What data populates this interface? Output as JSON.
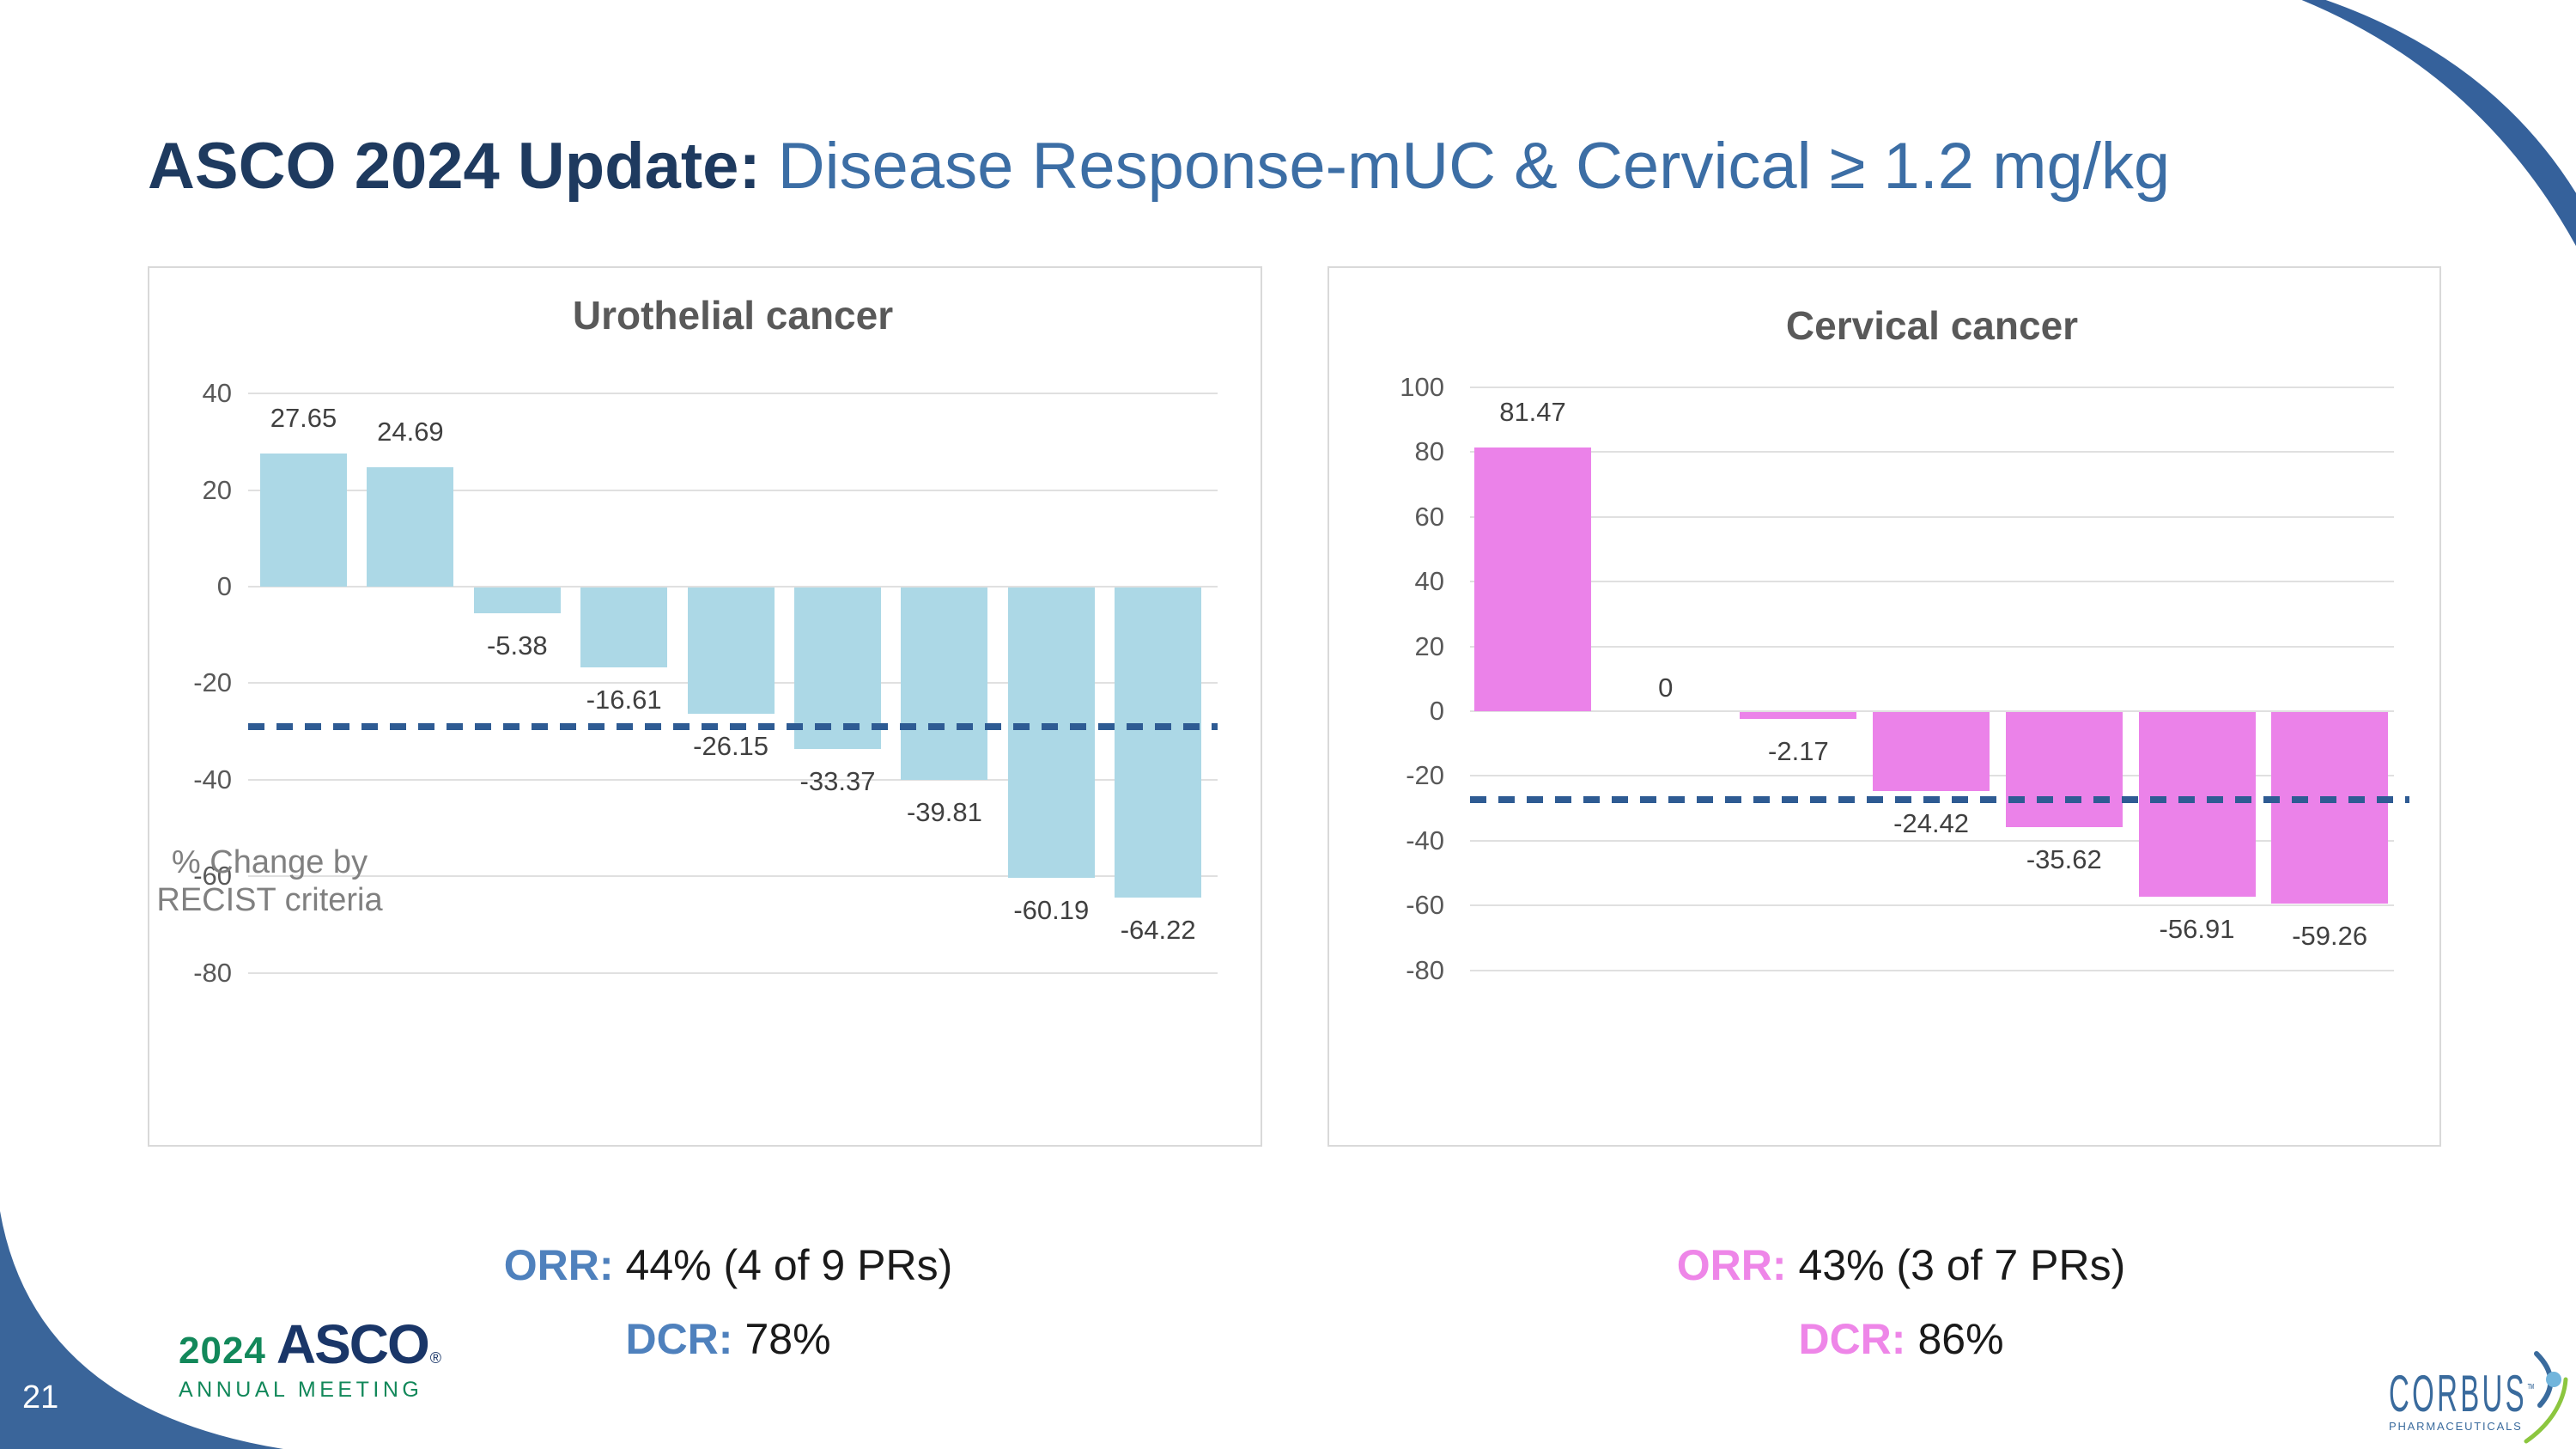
{
  "title": {
    "prefix": "ASCO 2024 Update:",
    "rest": "Disease Response-mUC & Cervical ≥ 1.2  mg/kg"
  },
  "chart_data": [
    {
      "type": "bar",
      "title": "Urothelial cancer",
      "ylabel": "% Change by RECIST criteria",
      "ylabel_lines": [
        "% Change by",
        "RECIST criteria"
      ],
      "values": [
        27.65,
        24.69,
        -5.38,
        -16.61,
        -26.15,
        -33.37,
        -39.81,
        -60.19,
        -64.22
      ],
      "value_labels": [
        "27.65",
        "24.69",
        "-5.38",
        "-16.61",
        "-26.15",
        "-33.37",
        "-39.81",
        "-60.19",
        "-64.22"
      ],
      "yticks": [
        40,
        20,
        0,
        -20,
        -40,
        -60,
        -80
      ],
      "ylim": [
        -80,
        40
      ],
      "grid": true,
      "bar_color": "#ACD8E6",
      "reference_line": -29,
      "reference_line_style": "dashed",
      "reference_line_color": "#2E5B93"
    },
    {
      "type": "bar",
      "title": "Cervical cancer",
      "ylabel": "",
      "values": [
        81.47,
        0,
        -2.17,
        -24.42,
        -35.62,
        -56.91,
        -59.26
      ],
      "value_labels": [
        "81.47",
        "0",
        "-2.17",
        "-24.42",
        "-35.62",
        "-56.91",
        "-59.26"
      ],
      "yticks": [
        100,
        80,
        60,
        40,
        20,
        0,
        -20,
        -40,
        -60,
        -80
      ],
      "ylim": [
        -80,
        100
      ],
      "grid": true,
      "bar_color": "#EB82E9",
      "reference_line": -27.3,
      "reference_line_style": "dashed",
      "reference_line_color": "#2E5B93"
    }
  ],
  "stats": [
    {
      "orr_label": "ORR:",
      "orr_value": "44% (4 of 9 PRs)",
      "dcr_label": "DCR:",
      "dcr_value": "78%",
      "accent": "#4F81BD"
    },
    {
      "orr_label": "ORR:",
      "orr_value": "43% (3 of 7 PRs)",
      "dcr_label": "DCR:",
      "dcr_value": "86%",
      "accent": "#EE86E8"
    }
  ],
  "footer": {
    "page_number": "21",
    "asco": {
      "year": "2024",
      "name": "ASCO",
      "reg": "®",
      "subtitle": "ANNUAL MEETING"
    },
    "corbus": {
      "name": "CORBUS",
      "tm": "™",
      "subtitle": "PHARMACEUTICALS"
    }
  },
  "colors": {
    "title_dark": "#1E3A5F",
    "title_blue": "#3C6EA5",
    "urothelial_bar": "#ACD8E6",
    "cervical_bar": "#EB82E9",
    "threshold_dash": "#2E5B93",
    "orr_blue": "#4F81BD",
    "orr_pink": "#EE86E8",
    "corner_blue": "#3A659A",
    "asco_green": "#12885A",
    "asco_navy": "#1A3668",
    "corbus_blue": "#3A6B9D",
    "gridline": "#E0E0E0"
  }
}
